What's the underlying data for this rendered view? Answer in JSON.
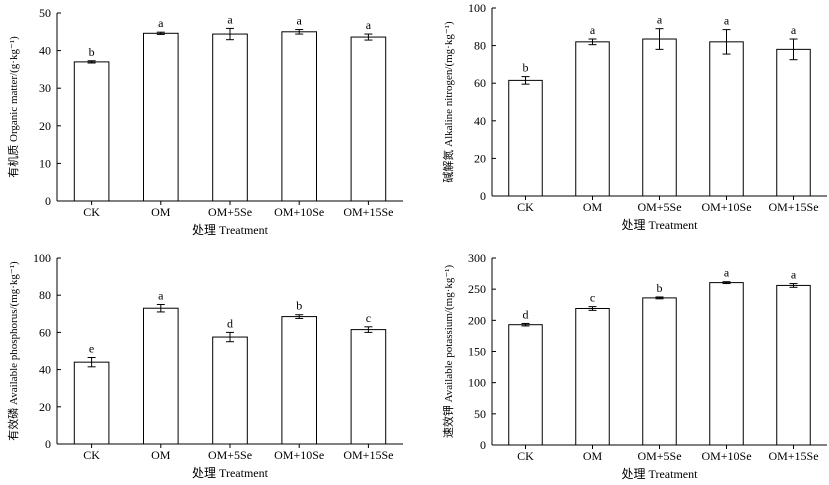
{
  "chart_data": [
    {
      "type": "bar",
      "categories": [
        "CK",
        "OM",
        "OM+5Se",
        "OM+10Se",
        "OM+15Se"
      ],
      "values": [
        37.0,
        44.6,
        44.4,
        45.0,
        43.6
      ],
      "errors": [
        0.3,
        0.3,
        1.5,
        0.6,
        0.8
      ],
      "letters": [
        "b",
        "a",
        "a",
        "a",
        "a"
      ],
      "ylabel": "有机质 Organic matter/(g·kg⁻¹)",
      "xlabel": "处理 Treatment",
      "ylim": [
        0,
        50
      ],
      "yticks": [
        0,
        10,
        20,
        30,
        40,
        50
      ],
      "grid": false
    },
    {
      "type": "bar",
      "categories": [
        "CK",
        "OM",
        "OM+5Se",
        "OM+10Se",
        "OM+15Se"
      ],
      "values": [
        61.5,
        82.0,
        83.5,
        82.0,
        78.0
      ],
      "errors": [
        2.0,
        1.5,
        5.5,
        6.5,
        5.5
      ],
      "letters": [
        "b",
        "a",
        "a",
        "a",
        "a"
      ],
      "ylabel": "碱解氮 Alkaline nitrogen/(mg·kg⁻¹)",
      "xlabel": "处理 Treatment",
      "ylim": [
        0,
        100
      ],
      "yticks": [
        0,
        20,
        40,
        60,
        80,
        100
      ],
      "grid": false
    },
    {
      "type": "bar",
      "categories": [
        "CK",
        "OM",
        "OM+5Se",
        "OM+10Se",
        "OM+15Se"
      ],
      "values": [
        44.0,
        73.0,
        57.5,
        68.5,
        61.5
      ],
      "errors": [
        2.5,
        2.0,
        2.5,
        1.0,
        1.5
      ],
      "letters": [
        "e",
        "a",
        "d",
        "b",
        "c"
      ],
      "ylabel": "有效磷 Available phosphorus/(mg·kg⁻¹)",
      "xlabel": "处理 Treatment",
      "ylim": [
        0,
        100
      ],
      "yticks": [
        0,
        20,
        40,
        60,
        80,
        100
      ],
      "grid": false
    },
    {
      "type": "bar",
      "categories": [
        "CK",
        "OM",
        "OM+5Se",
        "OM+10Se",
        "OM+15Se"
      ],
      "values": [
        193.0,
        219.0,
        236.0,
        260.5,
        256.0
      ],
      "errors": [
        2.0,
        3.0,
        1.5,
        1.5,
        3.0
      ],
      "letters": [
        "d",
        "c",
        "b",
        "a",
        "a"
      ],
      "ylabel": "速效钾 Available potassium/(mg·kg⁻¹)",
      "xlabel": "处理 Treatment",
      "ylim": [
        0,
        300
      ],
      "yticks": [
        0,
        50,
        100,
        150,
        200,
        250,
        300
      ],
      "grid": false
    }
  ]
}
